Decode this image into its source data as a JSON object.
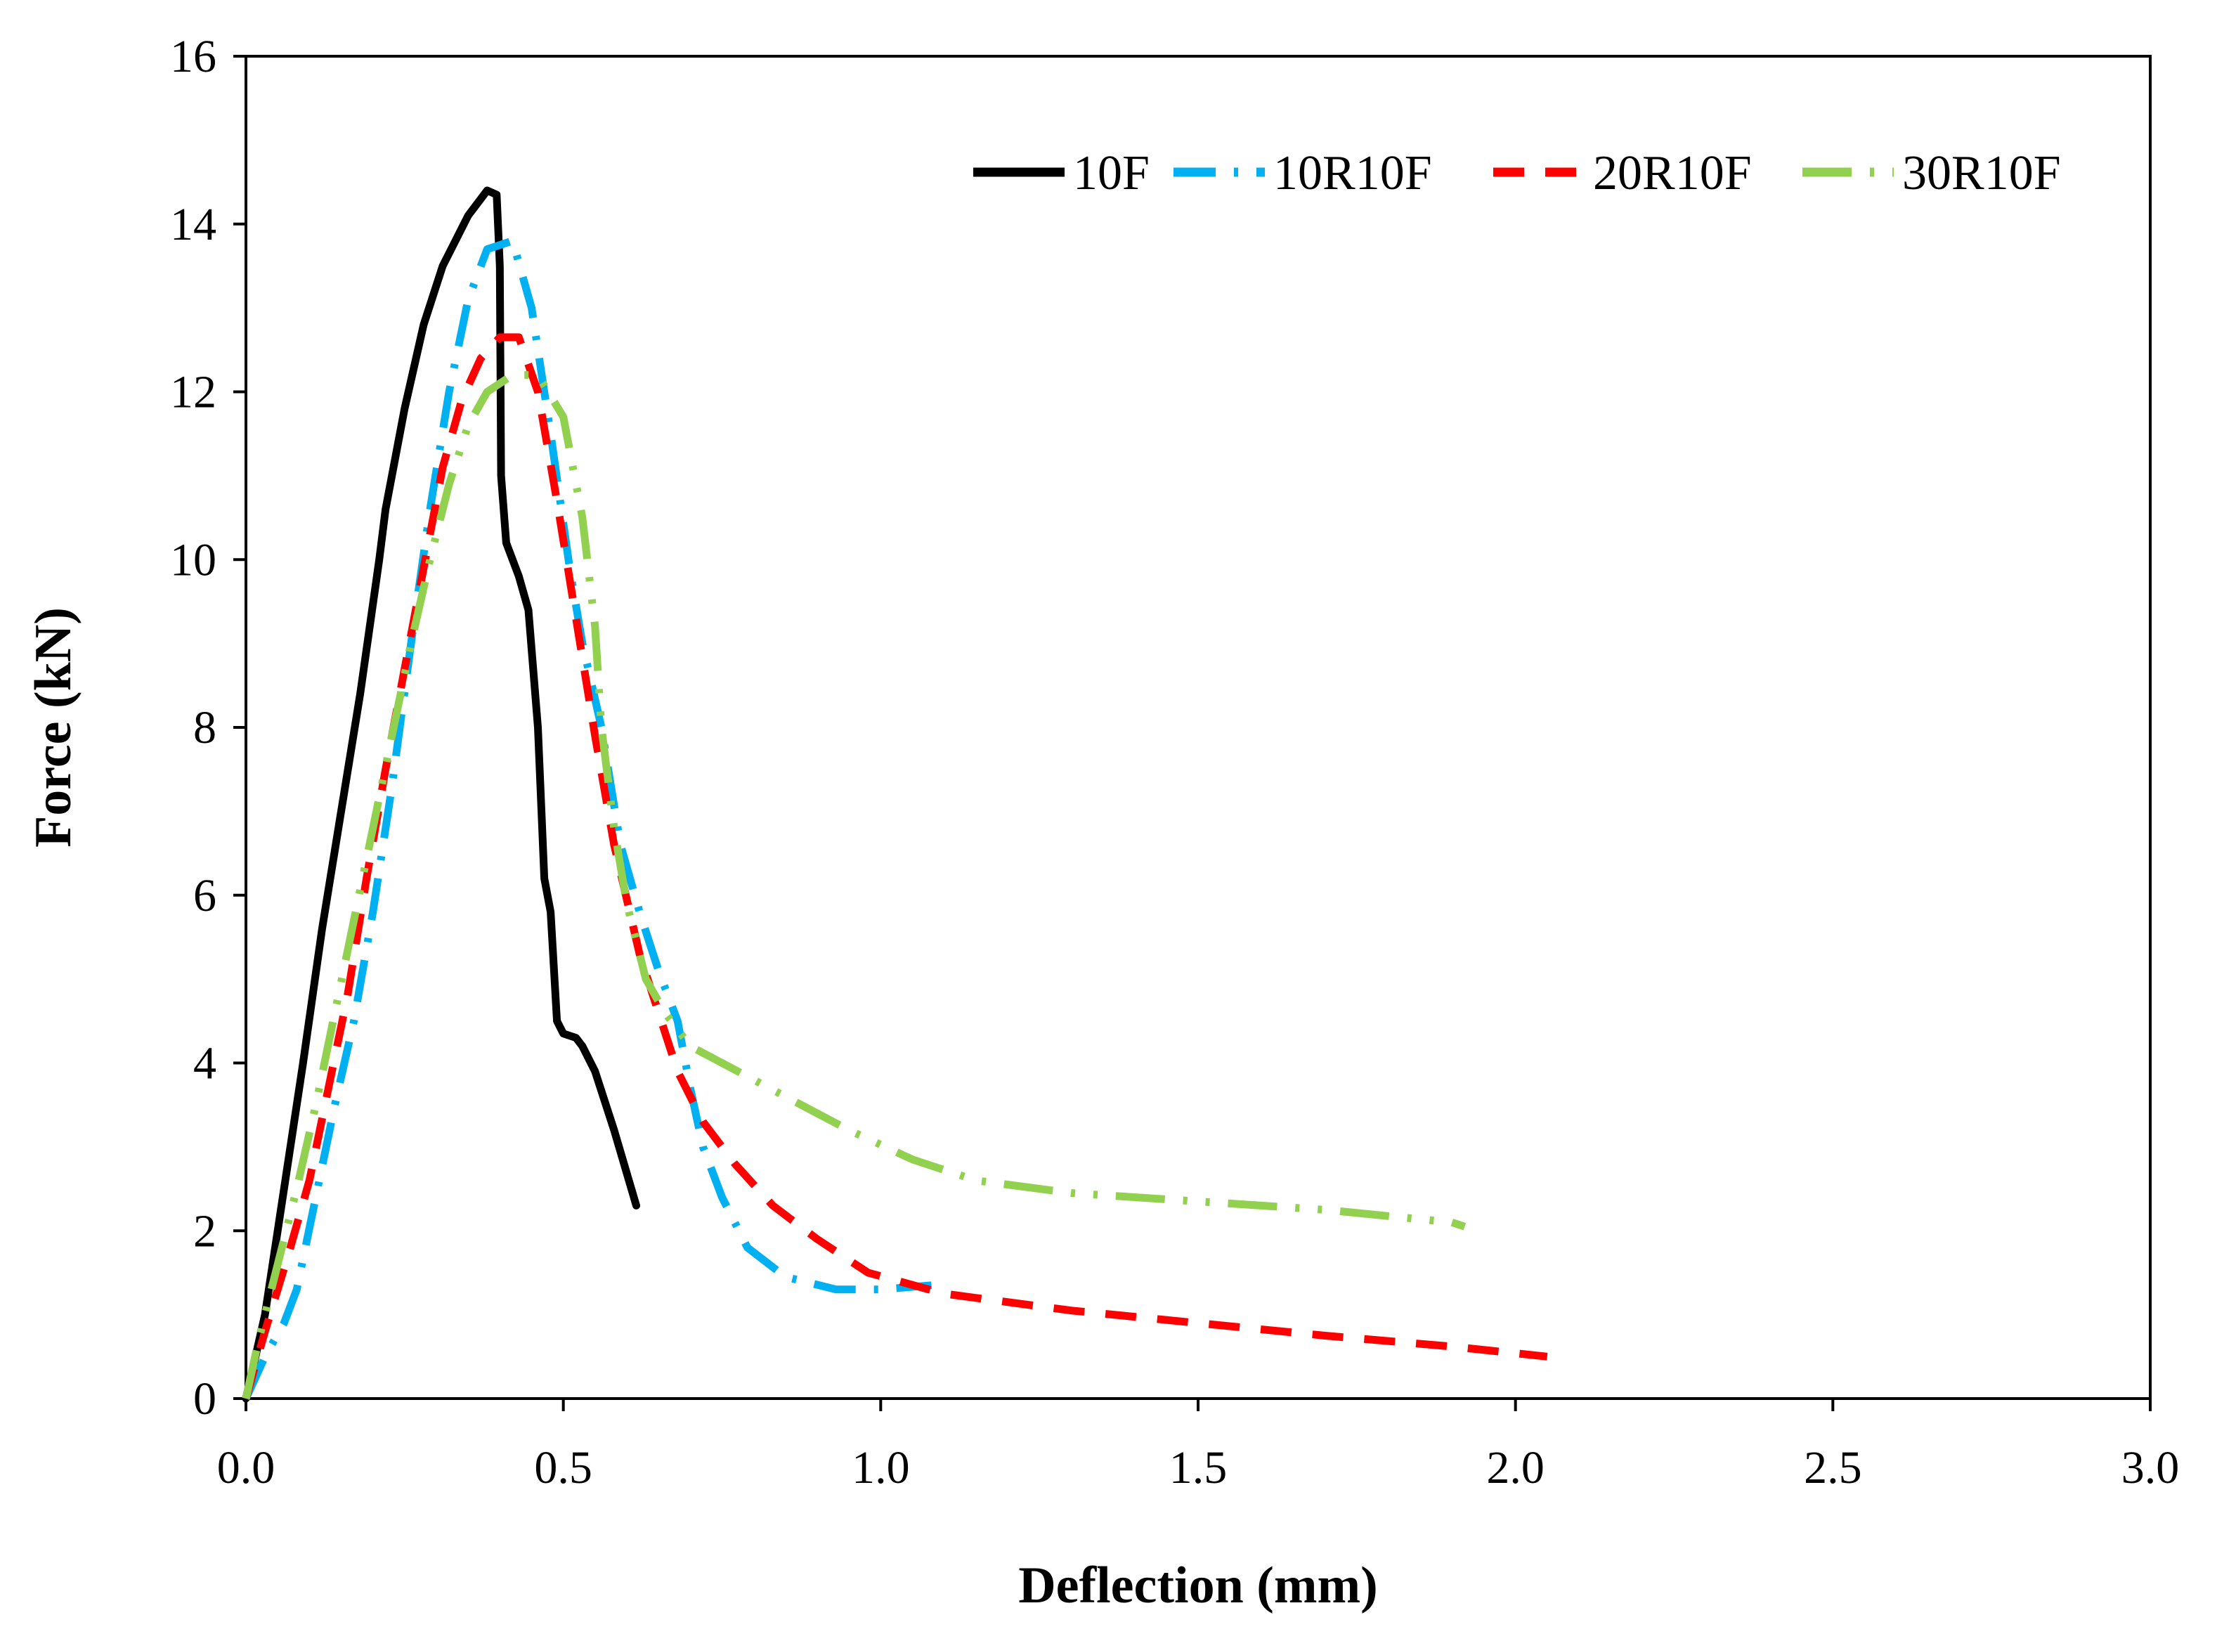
{
  "chart_data": {
    "type": "line",
    "title": "",
    "xlabel": "Deflection (mm)",
    "ylabel": "Force (kN)",
    "xlim": [
      0,
      3.0
    ],
    "ylim": [
      0,
      16
    ],
    "xticks": [
      "0.0",
      "0.5",
      "1.0",
      "1.5",
      "2.0",
      "2.5",
      "3.0"
    ],
    "yticks": [
      "0",
      "2",
      "4",
      "6",
      "8",
      "10",
      "12",
      "14",
      "16"
    ],
    "grid": false,
    "legend_position": "top-right",
    "series": [
      {
        "name": "10F",
        "color": "#000000",
        "style": "solid",
        "points": [
          [
            0,
            0
          ],
          [
            0.03,
            1.0
          ],
          [
            0.06,
            2.5
          ],
          [
            0.09,
            4.0
          ],
          [
            0.12,
            5.6
          ],
          [
            0.15,
            7.0
          ],
          [
            0.18,
            8.4
          ],
          [
            0.21,
            10.0
          ],
          [
            0.22,
            10.6
          ],
          [
            0.25,
            11.8
          ],
          [
            0.28,
            12.8
          ],
          [
            0.31,
            13.5
          ],
          [
            0.35,
            14.1
          ],
          [
            0.38,
            14.4
          ],
          [
            0.395,
            14.35
          ],
          [
            0.4,
            13.5
          ],
          [
            0.402,
            11.0
          ],
          [
            0.41,
            10.2
          ],
          [
            0.43,
            9.8
          ],
          [
            0.445,
            9.4
          ],
          [
            0.46,
            8.0
          ],
          [
            0.47,
            6.2
          ],
          [
            0.48,
            5.8
          ],
          [
            0.49,
            4.5
          ],
          [
            0.5,
            4.35
          ],
          [
            0.52,
            4.3
          ],
          [
            0.53,
            4.2
          ],
          [
            0.55,
            3.9
          ],
          [
            0.58,
            3.2
          ],
          [
            0.615,
            2.3
          ]
        ]
      },
      {
        "name": "10R10F",
        "color": "#00b0f0",
        "style": "dash-dot",
        "points": [
          [
            0,
            0
          ],
          [
            0.03,
            0.5
          ],
          [
            0.06,
            0.9
          ],
          [
            0.08,
            1.3
          ],
          [
            0.11,
            2.4
          ],
          [
            0.14,
            3.5
          ],
          [
            0.17,
            4.5
          ],
          [
            0.2,
            5.8
          ],
          [
            0.23,
            7.3
          ],
          [
            0.26,
            9.0
          ],
          [
            0.29,
            10.6
          ],
          [
            0.32,
            12.0
          ],
          [
            0.35,
            13.1
          ],
          [
            0.38,
            13.7
          ],
          [
            0.42,
            13.8
          ],
          [
            0.45,
            13.0
          ],
          [
            0.48,
            11.5
          ],
          [
            0.51,
            9.9
          ],
          [
            0.53,
            9.0
          ],
          [
            0.56,
            8.0
          ],
          [
            0.59,
            6.6
          ],
          [
            0.62,
            5.8
          ],
          [
            0.65,
            5.1
          ],
          [
            0.68,
            4.5
          ],
          [
            0.7,
            3.7
          ],
          [
            0.72,
            3.0
          ],
          [
            0.75,
            2.4
          ],
          [
            0.79,
            1.8
          ],
          [
            0.85,
            1.45
          ],
          [
            0.93,
            1.3
          ],
          [
            1.0,
            1.3
          ],
          [
            1.08,
            1.35
          ]
        ]
      },
      {
        "name": "20R10F",
        "color": "#ff0000",
        "style": "dashed",
        "points": [
          [
            0,
            0
          ],
          [
            0.03,
            0.8
          ],
          [
            0.07,
            1.8
          ],
          [
            0.1,
            2.6
          ],
          [
            0.13,
            3.7
          ],
          [
            0.16,
            4.8
          ],
          [
            0.19,
            6.2
          ],
          [
            0.22,
            7.5
          ],
          [
            0.25,
            8.7
          ],
          [
            0.28,
            9.9
          ],
          [
            0.31,
            11.1
          ],
          [
            0.34,
            11.9
          ],
          [
            0.37,
            12.4
          ],
          [
            0.4,
            12.65
          ],
          [
            0.43,
            12.65
          ],
          [
            0.46,
            12.0
          ],
          [
            0.49,
            10.7
          ],
          [
            0.52,
            9.3
          ],
          [
            0.55,
            7.9
          ],
          [
            0.58,
            6.6
          ],
          [
            0.62,
            5.3
          ],
          [
            0.65,
            4.6
          ],
          [
            0.68,
            3.9
          ],
          [
            0.72,
            3.3
          ],
          [
            0.77,
            2.8
          ],
          [
            0.83,
            2.3
          ],
          [
            0.9,
            1.9
          ],
          [
            0.98,
            1.5
          ],
          [
            1.1,
            1.25
          ],
          [
            1.3,
            1.05
          ],
          [
            1.5,
            0.9
          ],
          [
            1.7,
            0.75
          ],
          [
            1.9,
            0.62
          ],
          [
            2.05,
            0.5
          ]
        ]
      },
      {
        "name": "30R10F",
        "color": "#92d050",
        "style": "dash-dot-dot",
        "points": [
          [
            0,
            0
          ],
          [
            0.02,
            0.7
          ],
          [
            0.05,
            1.6
          ],
          [
            0.08,
            2.5
          ],
          [
            0.11,
            3.5
          ],
          [
            0.14,
            4.6
          ],
          [
            0.17,
            5.7
          ],
          [
            0.2,
            6.8
          ],
          [
            0.23,
            7.9
          ],
          [
            0.26,
            9.0
          ],
          [
            0.29,
            10.0
          ],
          [
            0.32,
            10.9
          ],
          [
            0.35,
            11.6
          ],
          [
            0.38,
            12.0
          ],
          [
            0.42,
            12.2
          ],
          [
            0.46,
            12.2
          ],
          [
            0.5,
            11.7
          ],
          [
            0.53,
            10.5
          ],
          [
            0.55,
            9.2
          ],
          [
            0.56,
            8.0
          ],
          [
            0.58,
            6.8
          ],
          [
            0.6,
            5.9
          ],
          [
            0.63,
            5.0
          ],
          [
            0.66,
            4.6
          ],
          [
            0.7,
            4.2
          ],
          [
            0.75,
            4.0
          ],
          [
            0.85,
            3.6
          ],
          [
            0.95,
            3.2
          ],
          [
            1.05,
            2.85
          ],
          [
            1.15,
            2.6
          ],
          [
            1.3,
            2.45
          ],
          [
            1.5,
            2.35
          ],
          [
            1.7,
            2.25
          ],
          [
            1.9,
            2.1
          ],
          [
            1.92,
            2.05
          ]
        ]
      }
    ]
  }
}
